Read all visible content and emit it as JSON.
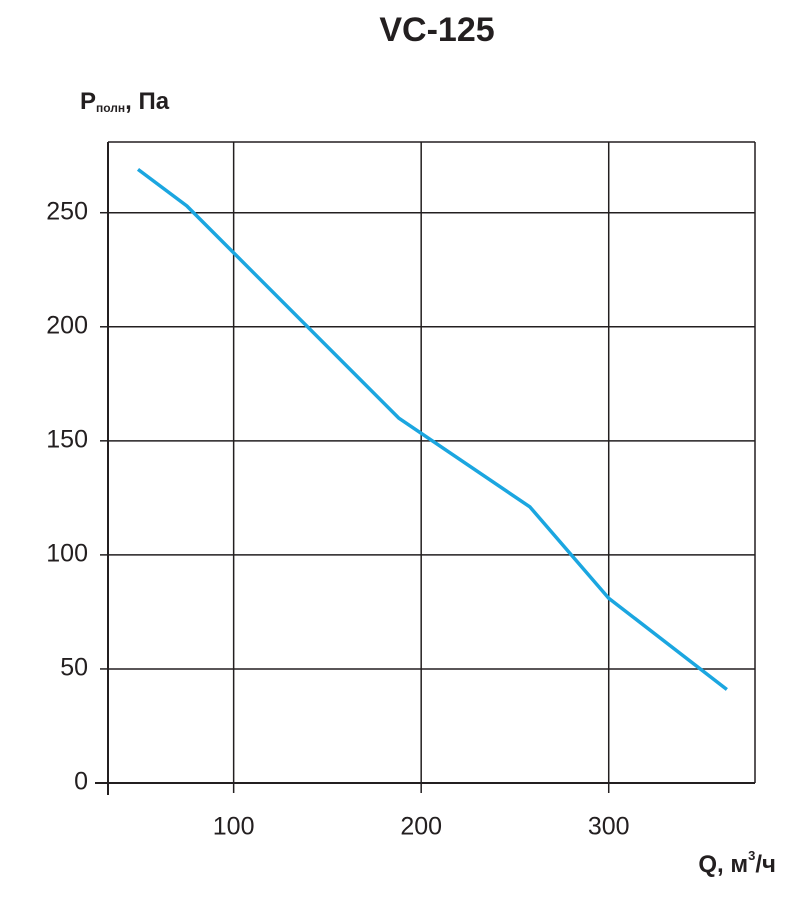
{
  "chart_data": {
    "type": "line",
    "title": "VC-125",
    "y_label": {
      "main": "P",
      "subscript": "полн",
      "rest": ", Па"
    },
    "x_label": {
      "main": "Q, м",
      "superscript": "3",
      "rest": "/ч"
    },
    "x": [
      49,
      75,
      188,
      258,
      300,
      363
    ],
    "series": [
      {
        "color": "#1ba6e0",
        "values": [
          269,
          253,
          160,
          121,
          81,
          41
        ]
      }
    ],
    "xlim": [
      33,
      378
    ],
    "ylim": [
      0,
      281
    ],
    "xticks": [
      100,
      200,
      300
    ],
    "yticks": [
      0,
      50,
      100,
      150,
      200,
      250
    ],
    "grid": true
  }
}
